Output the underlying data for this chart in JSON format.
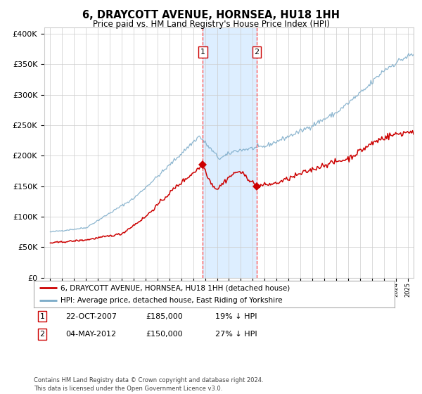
{
  "title": "6, DRAYCOTT AVENUE, HORNSEA, HU18 1HH",
  "subtitle": "Price paid vs. HM Land Registry's House Price Index (HPI)",
  "legend_line1": "6, DRAYCOTT AVENUE, HORNSEA, HU18 1HH (detached house)",
  "legend_line2": "HPI: Average price, detached house, East Riding of Yorkshire",
  "footnote": "Contains HM Land Registry data © Crown copyright and database right 2024.\nThis data is licensed under the Open Government Licence v3.0.",
  "sale1_date_label": "22-OCT-2007",
  "sale1_price_label": "£185,000",
  "sale1_hpi_label": "19% ↓ HPI",
  "sale2_date_label": "04-MAY-2012",
  "sale2_price_label": "£150,000",
  "sale2_hpi_label": "27% ↓ HPI",
  "sale1_x": 2007.81,
  "sale1_y": 185000,
  "sale2_x": 2012.34,
  "sale2_y": 150000,
  "background_color": "#ffffff",
  "plot_bg_color": "#ffffff",
  "grid_color": "#cccccc",
  "red_line_color": "#cc0000",
  "blue_line_color": "#7aaac8",
  "dashed_line_color": "#ff4444",
  "shade_color": "#ddeeff",
  "ylim": [
    0,
    410000
  ],
  "xlim_start": 1994.5,
  "xlim_end": 2025.5
}
